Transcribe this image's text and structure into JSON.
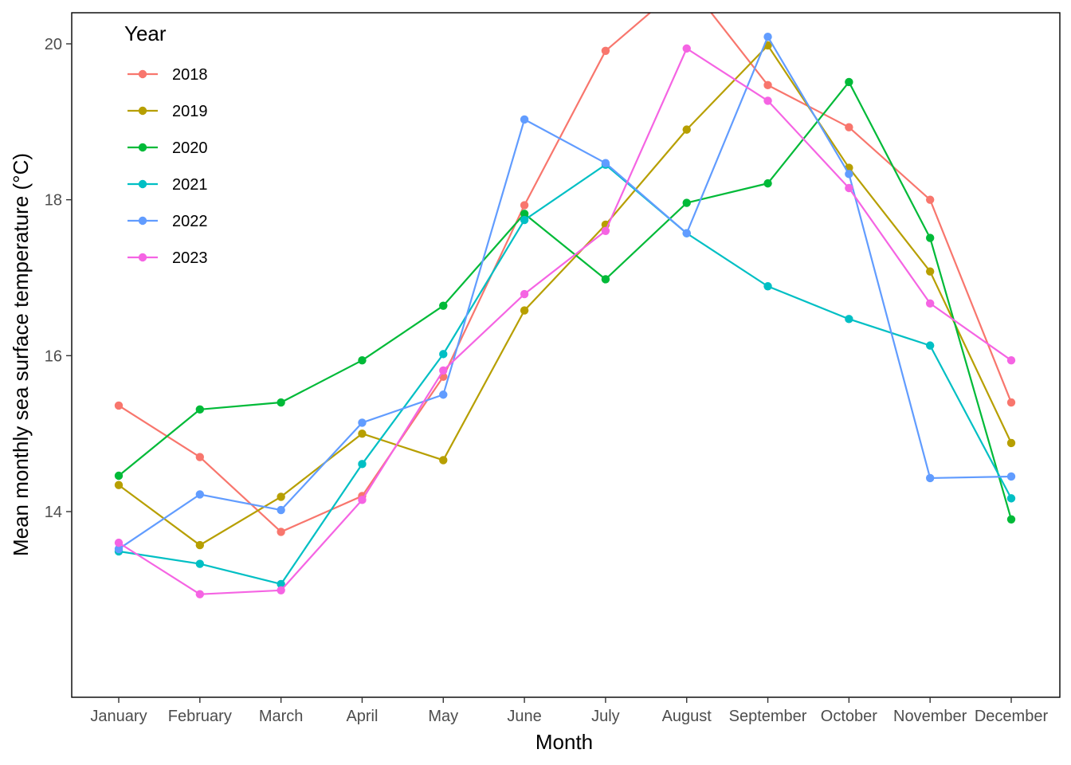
{
  "chart_data": {
    "type": "line",
    "xlabel": "Month",
    "ylabel": "Mean monthly sea surface temperature (°C)",
    "categories": [
      "January",
      "February",
      "March",
      "April",
      "May",
      "June",
      "July",
      "August",
      "September",
      "October",
      "November",
      "December"
    ],
    "ylim": [
      11.7,
      20.4
    ],
    "yticks": [
      14,
      16,
      18,
      20
    ],
    "grid": false,
    "legend": {
      "title": "Year",
      "position": "top-left"
    },
    "series": [
      {
        "name": "2018",
        "color": "#F8766D",
        "values": [
          15.36,
          14.7,
          13.74,
          14.2,
          15.73,
          17.93,
          19.91,
          20.8,
          19.47,
          18.93,
          18.0,
          15.4
        ]
      },
      {
        "name": "2019",
        "color": "#B79F00",
        "values": [
          14.34,
          13.57,
          14.19,
          15.0,
          14.66,
          16.58,
          17.68,
          18.9,
          19.98,
          18.41,
          17.08,
          14.88
        ]
      },
      {
        "name": "2020",
        "color": "#00BA38",
        "values": [
          14.46,
          15.31,
          15.4,
          15.94,
          16.64,
          17.82,
          16.98,
          17.96,
          18.21,
          19.51,
          17.51,
          13.9
        ]
      },
      {
        "name": "2021",
        "color": "#00BFC4",
        "values": [
          13.49,
          13.33,
          13.07,
          14.61,
          16.02,
          17.74,
          18.45,
          17.57,
          16.89,
          16.47,
          16.13,
          14.17
        ]
      },
      {
        "name": "2022",
        "color": "#619CFF",
        "values": [
          13.52,
          14.22,
          14.02,
          15.14,
          15.5,
          19.03,
          18.47,
          17.57,
          20.09,
          18.33,
          14.43,
          14.45
        ]
      },
      {
        "name": "2023",
        "color": "#F564E3",
        "values": [
          13.6,
          12.94,
          12.99,
          14.15,
          15.81,
          16.79,
          17.6,
          19.94,
          19.27,
          18.15,
          16.67,
          15.94
        ]
      }
    ]
  }
}
